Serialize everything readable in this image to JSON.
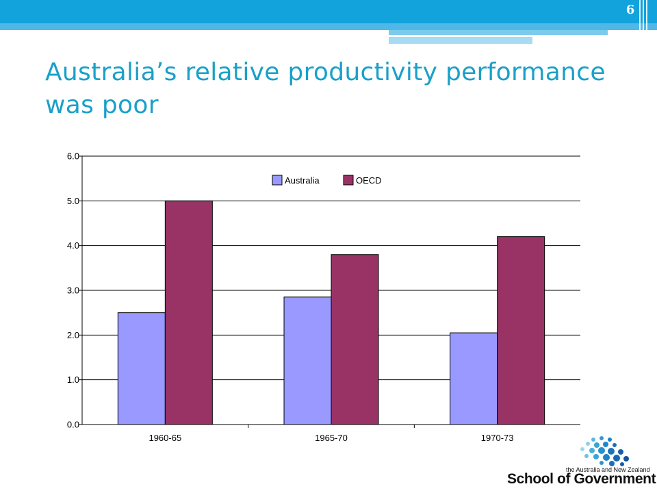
{
  "slide": {
    "page_number": "6",
    "title_line1": "Australia’s relative productivity performance",
    "title_line2": "was poor"
  },
  "colors": {
    "header": "#12a3dc",
    "title": "#1aa0c9",
    "australia": "#9999ff",
    "oecd": "#993366"
  },
  "chart_data": {
    "type": "bar",
    "categories": [
      "1960-65",
      "1965-70",
      "1970-73"
    ],
    "series": [
      {
        "name": "Australia",
        "values": [
          2.5,
          2.85,
          2.05
        ],
        "color": "#9999ff"
      },
      {
        "name": "OECD",
        "values": [
          5.0,
          3.8,
          4.2
        ],
        "color": "#993366"
      }
    ],
    "yticks": [
      "0.0",
      "1.0",
      "2.0",
      "3.0",
      "4.0",
      "5.0",
      "6.0"
    ],
    "ylim": [
      0,
      6
    ],
    "grid": true,
    "legend": "top-center",
    "title": "",
    "xlabel": "",
    "ylabel": ""
  },
  "logo": {
    "subtitle": "the Australia and New Zealand",
    "name": "School of Government",
    "icon": "dot-cluster-logo"
  }
}
